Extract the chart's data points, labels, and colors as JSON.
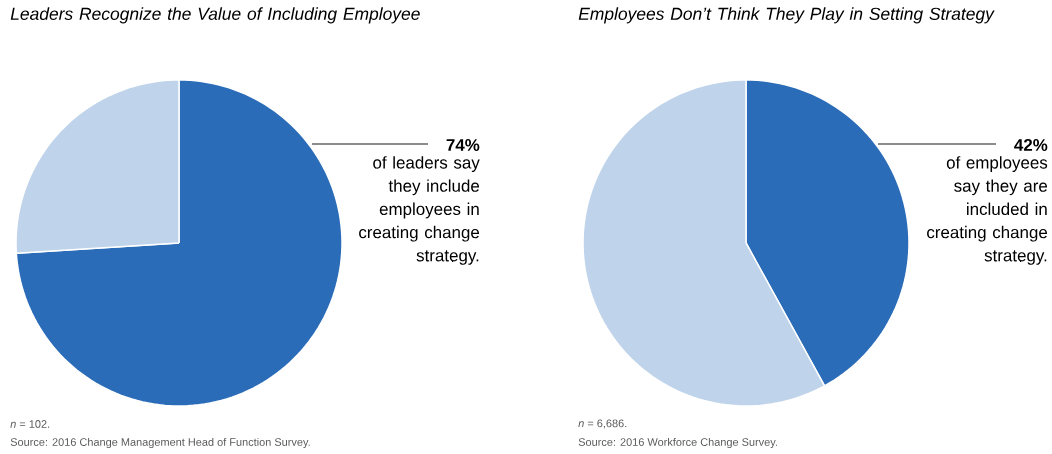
{
  "chart_data": [
    {
      "type": "pie",
      "title": "Leaders Recognize the Value of Including Employee",
      "categories": [
        null,
        null
      ],
      "values": [
        74,
        26
      ],
      "colors": [
        "#2b6cb9",
        "#bfd3ea"
      ],
      "annotations": [
        "74%",
        "of leaders say they include employees in creating change strategy.",
        "*n* = 102.",
        "Source: 2016 Change Management Head of Function Survey."
      ]
    },
    {
      "type": "pie",
      "title": "Employees Don’t Think They Play in Setting Strategy",
      "categories": [
        null,
        null
      ],
      "values": [
        42,
        58
      ],
      "colors": [
        "#2b6cb9",
        "#bfd3ea"
      ],
      "annotations": [
        "42%",
        "of employees say they are included in creating change strategy.",
        "*n* = 6,686.",
        "Source: 2016 Workforce Change Survey."
      ]
    }
  ]
}
